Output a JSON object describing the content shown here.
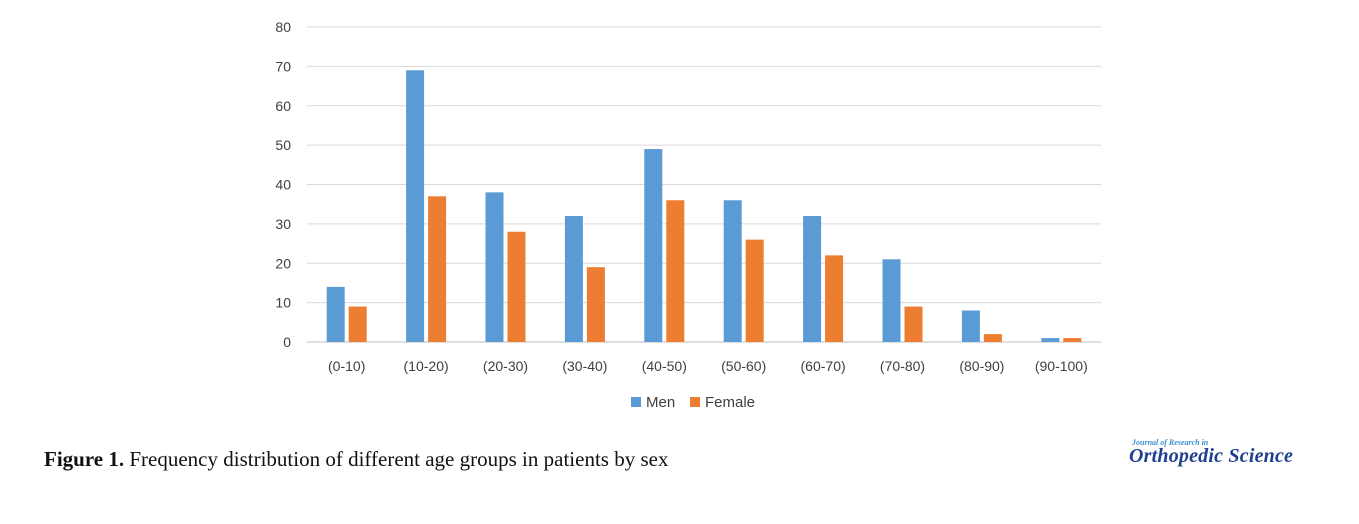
{
  "chart_data": {
    "type": "bar",
    "categories": [
      "(0-10)",
      "(10-20)",
      "(20-30)",
      "(30-40)",
      "(40-50)",
      "(50-60)",
      "(60-70)",
      "(70-80)",
      "(80-90)",
      "(90-100)"
    ],
    "series": [
      {
        "name": "Men",
        "color": "#5b9bd5",
        "values": [
          14,
          69,
          38,
          32,
          49,
          36,
          32,
          21,
          8,
          1
        ]
      },
      {
        "name": "Female",
        "color": "#ed7d31",
        "values": [
          9,
          37,
          28,
          19,
          36,
          26,
          22,
          9,
          2,
          1
        ]
      }
    ],
    "ylim": [
      0,
      80
    ],
    "yticks": [
      0,
      10,
      20,
      30,
      40,
      50,
      60,
      70,
      80
    ],
    "grid": true,
    "legend": "bottom-center",
    "xlabel": "",
    "ylabel": "",
    "title": ""
  },
  "caption": {
    "label": "Figure 1.",
    "text": " Frequency distribution of different age groups in patients by sex"
  },
  "logo": {
    "small_text": "Journal of Research in",
    "main_text": "Orthopedic Science"
  }
}
